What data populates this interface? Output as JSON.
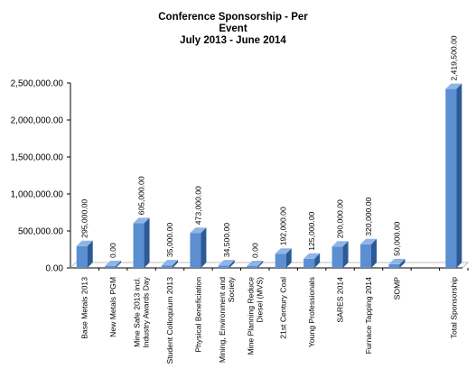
{
  "chart_data": {
    "type": "bar",
    "title_lines": [
      "Conference Sponsorship - Per",
      "Event",
      "July 2013 - June 2014"
    ],
    "categories": [
      [
        "Base Metals 2013"
      ],
      [
        "New Metals PGM"
      ],
      [
        "Mine Safe 2013 incl.",
        "Industry Awards Day"
      ],
      [
        "Student Colloquium 2013"
      ],
      [
        "Physical Beneficiation"
      ],
      [
        "Mining, Environment and",
        "Society"
      ],
      [
        "Mine Planning Reduce",
        "Diesel (MVS)"
      ],
      [
        "21st Century Coal"
      ],
      [
        "Young Professionals"
      ],
      [
        "SARES 2014"
      ],
      [
        "Furnace Tapping 2014"
      ],
      [
        "SOMP"
      ],
      [
        ""
      ],
      [
        "Total Sponsorship"
      ]
    ],
    "values": [
      295000,
      0,
      605000,
      35000,
      473000,
      34500,
      0,
      192000,
      125000,
      290000,
      320000,
      50000,
      null,
      2419500
    ],
    "value_labels": [
      "295,000.00",
      "0.00",
      "605,000.00",
      "35,000.00",
      "473,000.00",
      "34,500.00",
      "0.00",
      "192,000.00",
      "125,000.00",
      "290,000.00",
      "320,000.00",
      "50,000.00",
      "",
      "2,419,500.00"
    ],
    "y_ticks": [
      {
        "value": 0,
        "label": "0.00"
      },
      {
        "value": 500000,
        "label": "500,000.00"
      },
      {
        "value": 1000000,
        "label": "1,000,000.00"
      },
      {
        "value": 1500000,
        "label": "1,500,000.00"
      },
      {
        "value": 2000000,
        "label": "2,000,000.00"
      },
      {
        "value": 2500000,
        "label": "2,500,000.00"
      }
    ],
    "ylim": [
      0,
      2500000
    ],
    "grid": false,
    "colors": {
      "bar_front": "#5b8fd1",
      "bar_side": "#2c5a96",
      "bar_top": "#8fb5e6",
      "axis": "#000000",
      "wall": "#bfbfbf"
    }
  }
}
